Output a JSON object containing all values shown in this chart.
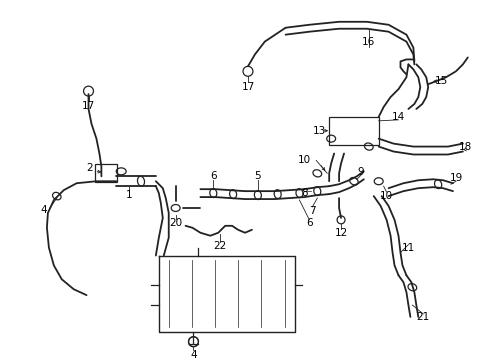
{
  "bg_color": "#ffffff",
  "line_color": "#222222",
  "label_color": "#000000",
  "fig_width": 4.89,
  "fig_height": 3.6,
  "dpi": 100
}
